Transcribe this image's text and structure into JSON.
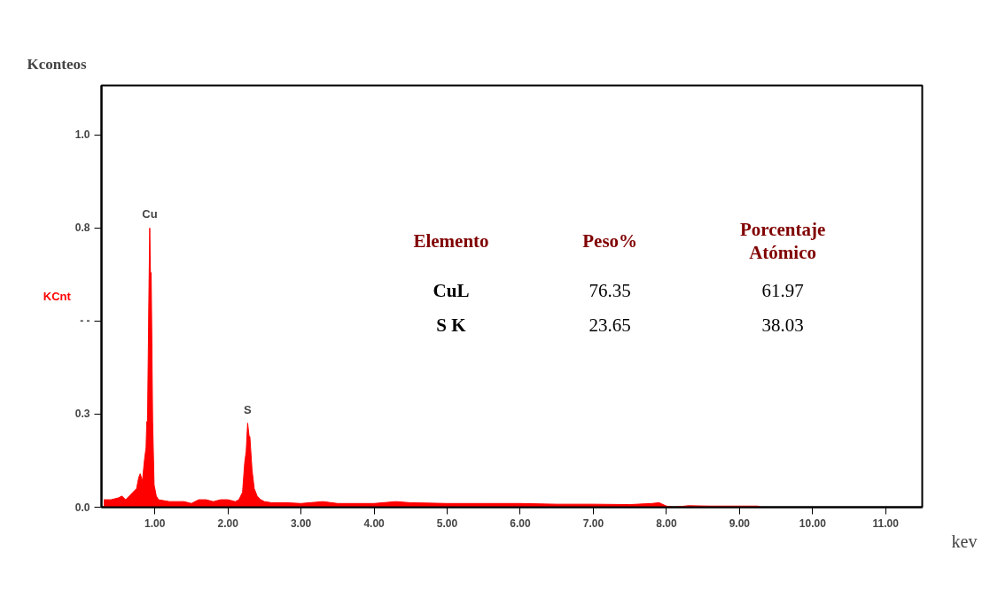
{
  "chart_data": {
    "type": "area",
    "title": "Kconteos",
    "xlabel": "kev",
    "ylabel": "KCnt",
    "xlim": [
      0.27,
      11.5
    ],
    "ylim": [
      0,
      1.133
    ],
    "xticks": [
      {
        "value": 1,
        "label": "1.00"
      },
      {
        "value": 2,
        "label": "2.00"
      },
      {
        "value": 3,
        "label": "3.00"
      },
      {
        "value": 4,
        "label": "4.00"
      },
      {
        "value": 5,
        "label": "5.00"
      },
      {
        "value": 6,
        "label": "6.00"
      },
      {
        "value": 7,
        "label": "7.00"
      },
      {
        "value": 8,
        "label": "8.00"
      },
      {
        "value": 9,
        "label": "9.00"
      },
      {
        "value": 10,
        "label": "10.00"
      },
      {
        "value": 11,
        "label": "11.00"
      }
    ],
    "yticks": [
      {
        "value": 0,
        "label": "0.0"
      },
      {
        "value": 0.25,
        "label": "0.3"
      },
      {
        "value": 0.5,
        "label": "- -"
      },
      {
        "value": 0.75,
        "label": "0.8"
      },
      {
        "value": 1,
        "label": "1.0"
      }
    ],
    "grid": false,
    "series": [
      {
        "color": "#ff0000",
        "x": [
          0.3,
          0.4,
          0.5,
          0.55,
          0.6,
          0.65,
          0.7,
          0.75,
          0.78,
          0.8,
          0.83,
          0.86,
          0.88,
          0.89,
          0.9,
          0.92,
          0.93,
          0.94,
          0.95,
          0.97,
          0.99,
          1.02,
          1.05,
          1.2,
          1.4,
          1.5,
          1.6,
          1.7,
          1.8,
          1.9,
          2.0,
          2.1,
          2.15,
          2.2,
          2.23,
          2.25,
          2.27,
          2.29,
          2.3,
          2.33,
          2.36,
          2.4,
          2.45,
          2.5,
          2.6,
          2.8,
          3.0,
          3.3,
          3.5,
          4.0,
          4.3,
          4.5,
          5.0,
          5.5,
          6.0,
          6.5,
          7.0,
          7.5,
          7.8,
          7.9,
          8.0,
          8.1,
          8.3,
          8.6,
          9.0,
          9.25,
          9.3,
          10.0,
          11.0,
          11.5
        ],
        "values": [
          0.02,
          0.02,
          0.025,
          0.03,
          0.02,
          0.03,
          0.04,
          0.05,
          0.08,
          0.09,
          0.07,
          0.13,
          0.16,
          0.23,
          0.23,
          0.59,
          0.75,
          0.63,
          0.63,
          0.23,
          0.06,
          0.03,
          0.02,
          0.015,
          0.015,
          0.01,
          0.02,
          0.02,
          0.015,
          0.02,
          0.02,
          0.015,
          0.02,
          0.04,
          0.12,
          0.15,
          0.226,
          0.19,
          0.19,
          0.1,
          0.05,
          0.03,
          0.02,
          0.015,
          0.012,
          0.012,
          0.01,
          0.015,
          0.01,
          0.01,
          0.015,
          0.012,
          0.01,
          0.01,
          0.01,
          0.008,
          0.008,
          0.007,
          0.01,
          0.012,
          0.003,
          0.0,
          0.004,
          0.003,
          0.003,
          0.003,
          0.0,
          0.0,
          0.0,
          0.0
        ]
      }
    ],
    "annotations": [
      {
        "text": "Cu",
        "x": 0.93,
        "y": 0.75
      },
      {
        "text": "S",
        "x": 2.27,
        "y": 0.226
      },
      "Elemento",
      "Peso%",
      "Porcentaje\nAtómico",
      "CuL",
      "76.35",
      "61.97",
      "S K",
      "23.65",
      "38.03"
    ]
  }
}
